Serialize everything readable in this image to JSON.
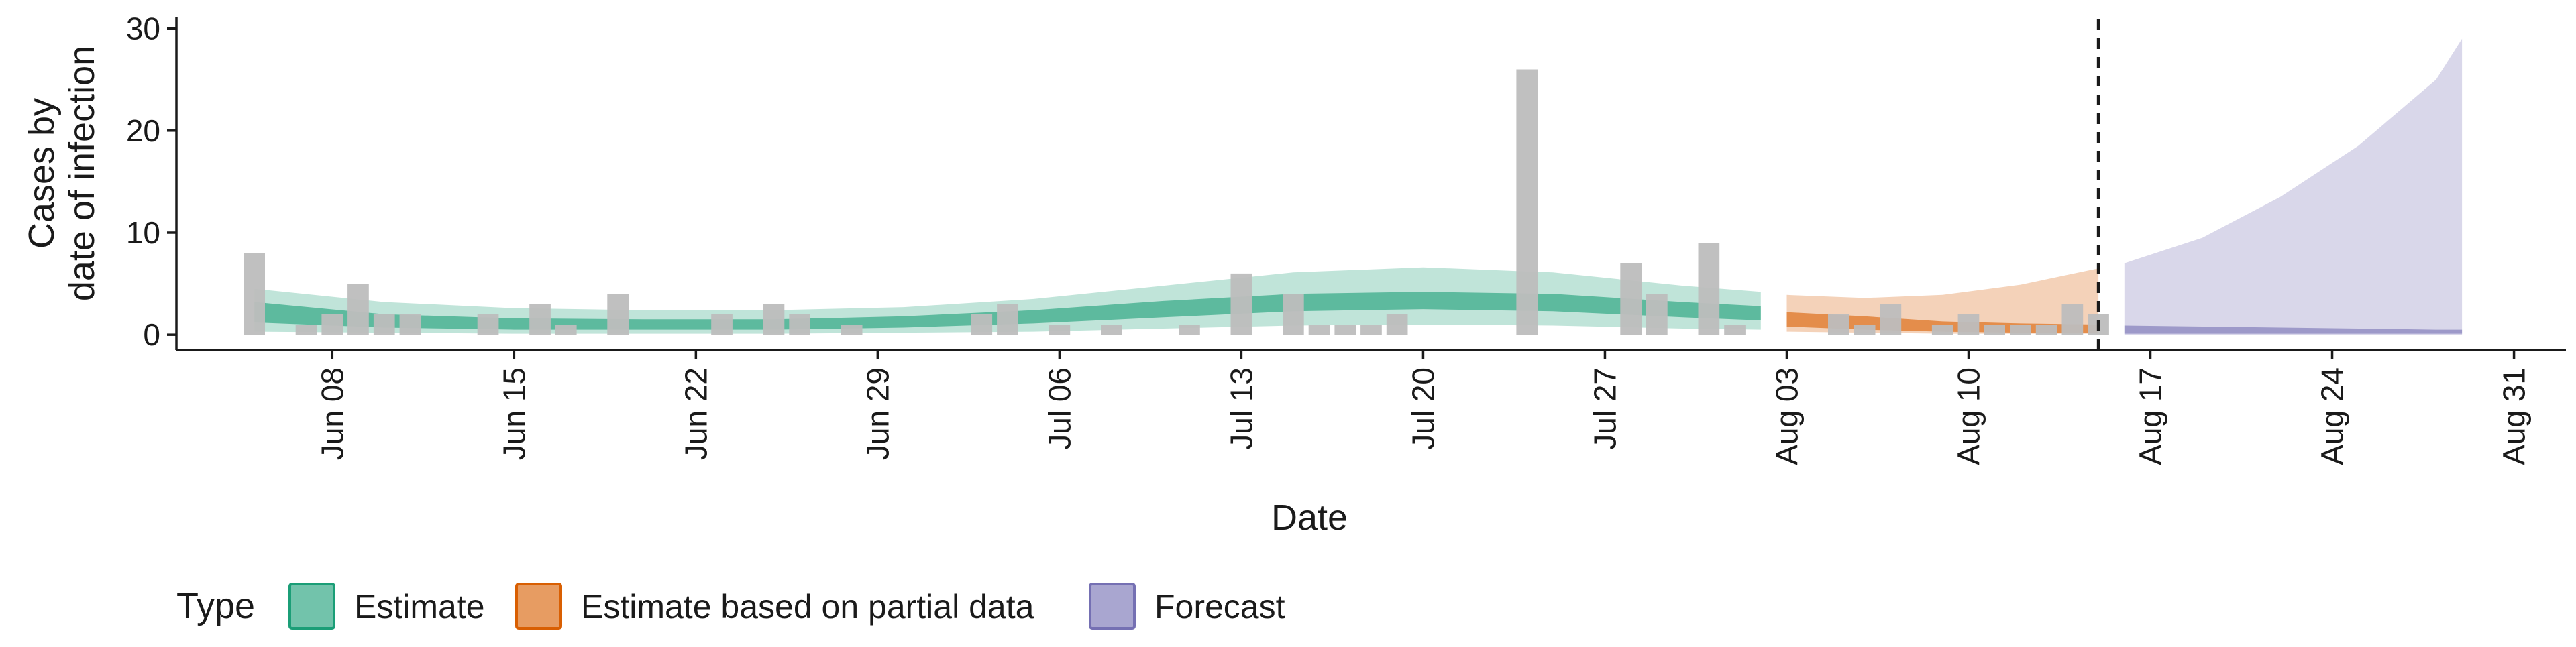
{
  "chart_data": {
    "type": "area",
    "title": "",
    "xlabel": "Date",
    "ylabel_lines": [
      "Cases by",
      "date of infection"
    ],
    "ylim": [
      -1.5,
      30.5
    ],
    "yticks": [
      0,
      10,
      20,
      30
    ],
    "xlim": [
      "2020-06-02",
      "2020-09-02"
    ],
    "xticks": [
      {
        "date": "2020-06-08",
        "label": "Jun 08"
      },
      {
        "date": "2020-06-15",
        "label": "Jun 15"
      },
      {
        "date": "2020-06-22",
        "label": "Jun 22"
      },
      {
        "date": "2020-06-29",
        "label": "Jun 29"
      },
      {
        "date": "2020-07-06",
        "label": "Jul 06"
      },
      {
        "date": "2020-07-13",
        "label": "Jul 13"
      },
      {
        "date": "2020-07-20",
        "label": "Jul 20"
      },
      {
        "date": "2020-07-27",
        "label": "Jul 27"
      },
      {
        "date": "2020-08-03",
        "label": "Aug 03"
      },
      {
        "date": "2020-08-10",
        "label": "Aug 10"
      },
      {
        "date": "2020-08-17",
        "label": "Aug 17"
      },
      {
        "date": "2020-08-24",
        "label": "Aug 24"
      },
      {
        "date": "2020-08-31",
        "label": "Aug 31"
      }
    ],
    "vline_date": "2020-08-15",
    "observed_bars": [
      {
        "date": "2020-06-05",
        "value": 8
      },
      {
        "date": "2020-06-07",
        "value": 1
      },
      {
        "date": "2020-06-08",
        "value": 2
      },
      {
        "date": "2020-06-09",
        "value": 5
      },
      {
        "date": "2020-06-10",
        "value": 2
      },
      {
        "date": "2020-06-11",
        "value": 2
      },
      {
        "date": "2020-06-14",
        "value": 2
      },
      {
        "date": "2020-06-16",
        "value": 3
      },
      {
        "date": "2020-06-17",
        "value": 1
      },
      {
        "date": "2020-06-19",
        "value": 4
      },
      {
        "date": "2020-06-23",
        "value": 2
      },
      {
        "date": "2020-06-25",
        "value": 3
      },
      {
        "date": "2020-06-26",
        "value": 2
      },
      {
        "date": "2020-06-28",
        "value": 1
      },
      {
        "date": "2020-07-03",
        "value": 2
      },
      {
        "date": "2020-07-04",
        "value": 3
      },
      {
        "date": "2020-07-06",
        "value": 1
      },
      {
        "date": "2020-07-08",
        "value": 1
      },
      {
        "date": "2020-07-11",
        "value": 1
      },
      {
        "date": "2020-07-13",
        "value": 6
      },
      {
        "date": "2020-07-15",
        "value": 4
      },
      {
        "date": "2020-07-16",
        "value": 1
      },
      {
        "date": "2020-07-17",
        "value": 1
      },
      {
        "date": "2020-07-18",
        "value": 1
      },
      {
        "date": "2020-07-19",
        "value": 2
      },
      {
        "date": "2020-07-24",
        "value": 26
      },
      {
        "date": "2020-07-28",
        "value": 7
      },
      {
        "date": "2020-07-29",
        "value": 4
      },
      {
        "date": "2020-07-31",
        "value": 9
      },
      {
        "date": "2020-08-01",
        "value": 1
      },
      {
        "date": "2020-08-05",
        "value": 2
      },
      {
        "date": "2020-08-06",
        "value": 1
      },
      {
        "date": "2020-08-07",
        "value": 3
      },
      {
        "date": "2020-08-09",
        "value": 1
      },
      {
        "date": "2020-08-10",
        "value": 2
      },
      {
        "date": "2020-08-11",
        "value": 1
      },
      {
        "date": "2020-08-12",
        "value": 1
      },
      {
        "date": "2020-08-13",
        "value": 1
      },
      {
        "date": "2020-08-14",
        "value": 3
      },
      {
        "date": "2020-08-15",
        "value": 2
      }
    ],
    "series": [
      {
        "name": "Estimate",
        "color": "#1b9e77",
        "points": [
          {
            "date": "2020-06-05",
            "lo90": 0.3,
            "hi90": 4.5,
            "lo50": 1.2,
            "hi50": 3.2
          },
          {
            "date": "2020-06-10",
            "lo90": 0.2,
            "hi90": 3.2,
            "lo50": 0.7,
            "hi50": 2.0
          },
          {
            "date": "2020-06-15",
            "lo90": 0.1,
            "hi90": 2.6,
            "lo50": 0.5,
            "hi50": 1.6
          },
          {
            "date": "2020-06-20",
            "lo90": 0.1,
            "hi90": 2.4,
            "lo50": 0.5,
            "hi50": 1.5
          },
          {
            "date": "2020-06-25",
            "lo90": 0.1,
            "hi90": 2.4,
            "lo50": 0.5,
            "hi50": 1.5
          },
          {
            "date": "2020-06-30",
            "lo90": 0.2,
            "hi90": 2.7,
            "lo50": 0.7,
            "hi50": 1.8
          },
          {
            "date": "2020-07-05",
            "lo90": 0.3,
            "hi90": 3.5,
            "lo50": 1.1,
            "hi50": 2.4
          },
          {
            "date": "2020-07-10",
            "lo90": 0.6,
            "hi90": 4.8,
            "lo50": 1.7,
            "hi50": 3.3
          },
          {
            "date": "2020-07-15",
            "lo90": 0.9,
            "hi90": 6.1,
            "lo50": 2.3,
            "hi50": 4.0
          },
          {
            "date": "2020-07-20",
            "lo90": 1.0,
            "hi90": 6.6,
            "lo50": 2.5,
            "hi50": 4.2
          },
          {
            "date": "2020-07-25",
            "lo90": 0.9,
            "hi90": 6.1,
            "lo50": 2.3,
            "hi50": 4.0
          },
          {
            "date": "2020-07-30",
            "lo90": 0.6,
            "hi90": 4.8,
            "lo50": 1.7,
            "hi50": 3.2
          },
          {
            "date": "2020-08-02",
            "lo90": 0.5,
            "hi90": 4.2,
            "lo50": 1.4,
            "hi50": 2.8
          }
        ]
      },
      {
        "name": "Estimate based on partial data",
        "color": "#d95f02",
        "points": [
          {
            "date": "2020-08-03",
            "lo90": 0.3,
            "hi90": 3.9,
            "lo50": 0.8,
            "hi50": 2.2
          },
          {
            "date": "2020-08-06",
            "lo90": 0.2,
            "hi90": 3.6,
            "lo50": 0.5,
            "hi50": 1.8
          },
          {
            "date": "2020-08-09",
            "lo90": 0.1,
            "hi90": 3.9,
            "lo50": 0.3,
            "hi50": 1.3
          },
          {
            "date": "2020-08-12",
            "lo90": 0.1,
            "hi90": 4.9,
            "lo50": 0.2,
            "hi50": 1.1
          },
          {
            "date": "2020-08-15",
            "lo90": 0.1,
            "hi90": 6.5,
            "lo50": 0.2,
            "hi50": 1.0
          }
        ]
      },
      {
        "name": "Forecast",
        "color": "#7570b3",
        "points": [
          {
            "date": "2020-08-16",
            "lo90": 0.0,
            "hi90": 7.0,
            "lo50": 0.1,
            "hi50": 0.9
          },
          {
            "date": "2020-08-19",
            "lo90": 0.0,
            "hi90": 9.5,
            "lo50": 0.1,
            "hi50": 0.8
          },
          {
            "date": "2020-08-22",
            "lo90": 0.0,
            "hi90": 13.5,
            "lo50": 0.1,
            "hi50": 0.7
          },
          {
            "date": "2020-08-25",
            "lo90": 0.0,
            "hi90": 18.5,
            "lo50": 0.1,
            "hi50": 0.6
          },
          {
            "date": "2020-08-28",
            "lo90": 0.0,
            "hi90": 25.0,
            "lo50": 0.1,
            "hi50": 0.5
          },
          {
            "date": "2020-08-29",
            "lo90": 0.0,
            "hi90": 29.0,
            "lo50": 0.1,
            "hi50": 0.5
          }
        ]
      }
    ],
    "legend": {
      "title": "Type",
      "position": "bottom-left",
      "entries": [
        {
          "label": "Estimate",
          "color": "#1b9e77"
        },
        {
          "label": "Estimate based on partial data",
          "color": "#d95f02"
        },
        {
          "label": "Forecast",
          "color": "#7570b3"
        }
      ]
    },
    "colors": {
      "observed_bars": "#bdbdbd",
      "vline": "#1a1a1a",
      "axis": "#1a1a1a"
    }
  }
}
